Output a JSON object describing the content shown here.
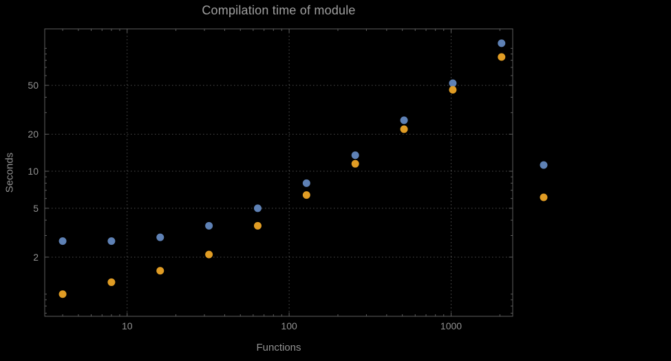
{
  "chart_data": {
    "type": "scatter",
    "title": "Compilation time of module",
    "xlabel": "Functions",
    "ylabel": "Seconds",
    "x_scale": "log",
    "y_scale": "log",
    "xlim": [
      3.1,
      2400
    ],
    "ylim": [
      0.66,
      144
    ],
    "x_ticks": [
      10,
      100,
      1000
    ],
    "y_ticks": [
      2,
      5,
      10,
      20,
      50
    ],
    "grid": "dotted-major",
    "x": [
      4,
      8,
      16,
      32,
      64,
      128,
      256,
      512,
      1024,
      2048
    ],
    "series": [
      {
        "name": "",
        "marker": "disk",
        "color": "#5e81b5",
        "values": [
          2.7,
          2.7,
          2.9,
          3.6,
          5.0,
          8.0,
          13.5,
          26,
          52,
          110
        ]
      },
      {
        "name": "",
        "marker": "disk",
        "color": "#e09c24",
        "values": [
          1.0,
          1.25,
          1.55,
          2.1,
          3.6,
          6.4,
          11.5,
          22,
          46,
          85
        ]
      }
    ],
    "legend": {
      "position": "right-of-plot",
      "items": [
        {
          "label": "",
          "color": "#5e81b5"
        },
        {
          "label": "",
          "color": "#e09c24"
        }
      ]
    }
  },
  "colors": {
    "background": "#000000",
    "frame": "#606060",
    "grid": "#515151",
    "tick_text": "#929292",
    "axis_label_text": "#929292",
    "title_text": "#a0a0a0",
    "legend_label_text": "#000000"
  }
}
